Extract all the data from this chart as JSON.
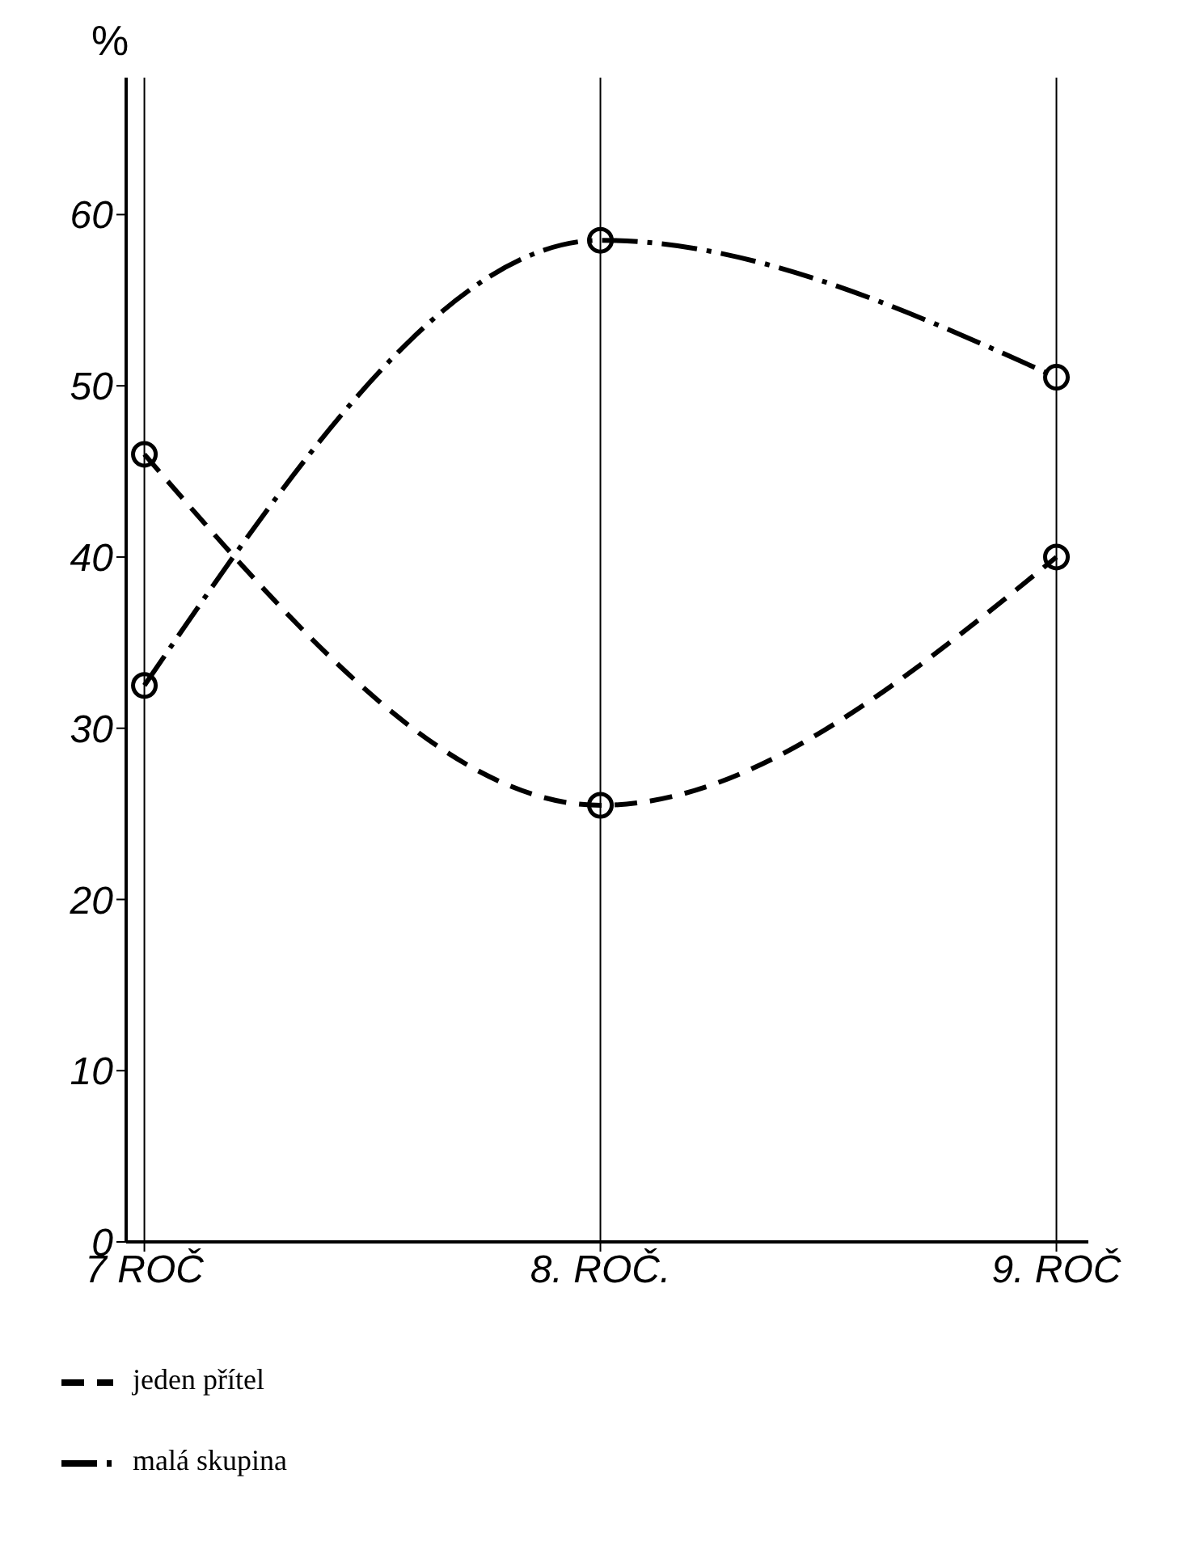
{
  "chart_data": {
    "type": "line",
    "ylabel": "%",
    "categories": [
      "7 ROČ",
      "8. ROČ.",
      "9. ROČ"
    ],
    "series": [
      {
        "name": "malá skupina",
        "color": "#000000",
        "values": [
          32.5,
          58.5,
          50.5
        ],
        "line_style": "dashdot"
      },
      {
        "name": "jeden přítel",
        "color": "#000000",
        "values": [
          46,
          25.5,
          40
        ],
        "line_style": "dashed"
      }
    ],
    "ylim": [
      0,
      68
    ],
    "yticks": [
      0,
      10,
      20,
      30,
      40,
      50,
      60
    ],
    "grid": "x",
    "legend": "bottom",
    "marker": "circle"
  }
}
